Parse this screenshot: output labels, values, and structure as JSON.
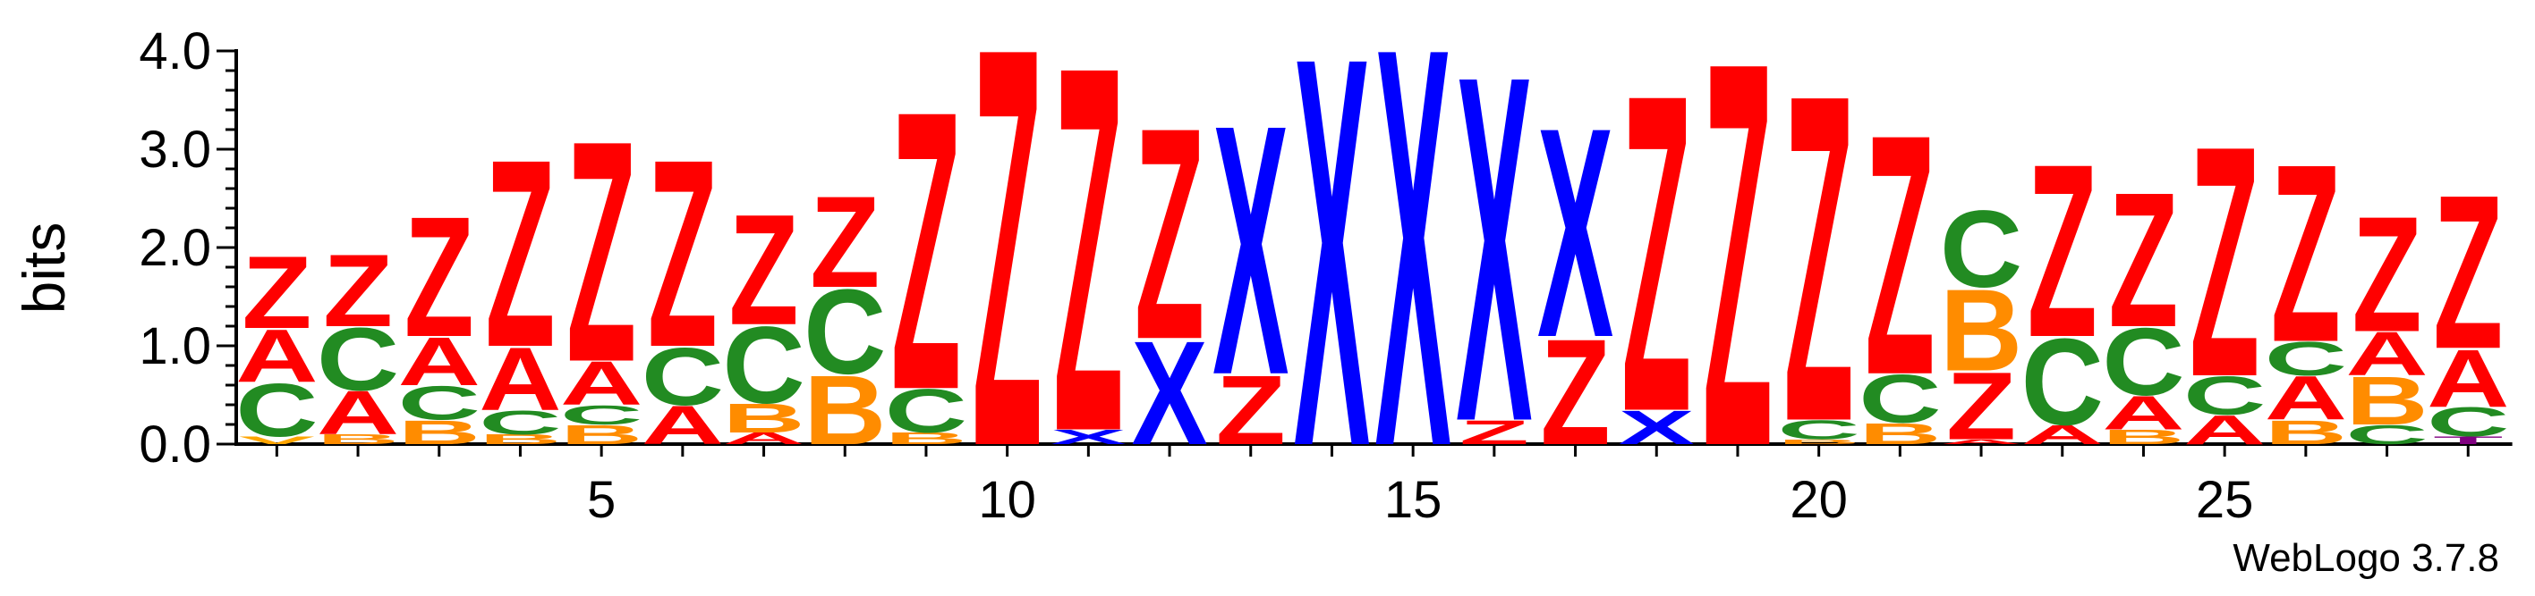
{
  "chart_data": {
    "type": "sequence-logo",
    "ylabel": "bits",
    "ylim": [
      0,
      4.0
    ],
    "y_ticks": [
      "0.0",
      "1.0",
      "2.0",
      "3.0",
      "4.0"
    ],
    "x_tick_labels": [
      "5",
      "10",
      "15",
      "20",
      "25"
    ],
    "x_tick_positions": [
      5,
      10,
      15,
      20,
      25
    ],
    "positions": 28,
    "colors": {
      "Z": "#ff0000",
      "A": "#ff0000",
      "X": "#0000ff",
      "C": "#228b22",
      "B": "#ff8c00",
      "V": "#ffa500",
      "T": "#800080"
    },
    "stacks": [
      [
        [
          "V",
          0.08
        ],
        [
          "C",
          0.55
        ],
        [
          "A",
          0.55
        ],
        [
          "Z",
          0.75
        ]
      ],
      [
        [
          "B",
          0.1
        ],
        [
          "A",
          0.45
        ],
        [
          "C",
          0.65
        ],
        [
          "Z",
          0.75
        ]
      ],
      [
        [
          "B",
          0.25
        ],
        [
          "C",
          0.35
        ],
        [
          "A",
          0.5
        ],
        [
          "Z",
          1.25
        ]
      ],
      [
        [
          "B",
          0.1
        ],
        [
          "C",
          0.25
        ],
        [
          "A",
          0.65
        ],
        [
          "Z",
          1.95
        ]
      ],
      [
        [
          "B",
          0.2
        ],
        [
          "C",
          0.2
        ],
        [
          "A",
          0.45
        ],
        [
          "Z",
          2.3
        ]
      ],
      [
        [
          "A",
          0.4
        ],
        [
          "C",
          0.6
        ],
        [
          "Z",
          1.95
        ]
      ],
      [
        [
          "A",
          0.12
        ],
        [
          "B",
          0.3
        ],
        [
          "C",
          0.8
        ],
        [
          "Z",
          1.15
        ]
      ],
      [
        [
          "B",
          0.72
        ],
        [
          "C",
          0.88
        ],
        [
          "Z",
          0.95
        ]
      ],
      [
        [
          "B",
          0.12
        ],
        [
          "C",
          0.45
        ],
        [
          "Z",
          2.9
        ]
      ],
      [
        [
          "Z",
          4.15
        ]
      ],
      [
        [
          "X",
          0.15
        ],
        [
          "Z",
          3.8
        ]
      ],
      [
        [
          "X",
          1.08
        ],
        [
          "Z",
          2.2
        ]
      ],
      [
        [
          "Z",
          0.72
        ],
        [
          "X",
          2.6
        ]
      ],
      [
        [
          "X",
          4.05
        ]
      ],
      [
        [
          "X",
          4.15
        ]
      ],
      [
        [
          "Z",
          0.25
        ],
        [
          "X",
          3.6
        ]
      ],
      [
        [
          "Z",
          1.1
        ],
        [
          "X",
          2.18
        ]
      ],
      [
        [
          "X",
          0.35
        ],
        [
          "Z",
          3.3
        ]
      ],
      [
        [
          "Z",
          4.0
        ]
      ],
      [
        [
          "B",
          0.05
        ],
        [
          "C",
          0.2
        ],
        [
          "Z",
          3.4
        ]
      ],
      [
        [
          "B",
          0.22
        ],
        [
          "C",
          0.5
        ],
        [
          "Z",
          2.5
        ]
      ],
      [
        [
          "A",
          0.05
        ],
        [
          "Z",
          0.7
        ],
        [
          "B",
          0.85
        ],
        [
          "C",
          0.8
        ]
      ],
      [
        [
          "A",
          0.2
        ],
        [
          "C",
          0.9
        ],
        [
          "Z",
          1.8
        ]
      ],
      [
        [
          "B",
          0.15
        ],
        [
          "A",
          0.35
        ],
        [
          "C",
          0.7
        ],
        [
          "Z",
          1.4
        ]
      ],
      [
        [
          "A",
          0.3
        ],
        [
          "C",
          0.4
        ],
        [
          "Z",
          2.4
        ]
      ],
      [
        [
          "B",
          0.25
        ],
        [
          "A",
          0.45
        ],
        [
          "C",
          0.35
        ],
        [
          "Z",
          1.85
        ]
      ],
      [
        [
          "C",
          0.2
        ],
        [
          "B",
          0.5
        ],
        [
          "A",
          0.45
        ],
        [
          "Z",
          1.2
        ]
      ],
      [
        [
          "T",
          0.08
        ],
        [
          "C",
          0.3
        ],
        [
          "A",
          0.6
        ],
        [
          "Z",
          1.6
        ]
      ]
    ]
  },
  "footer": {
    "credit": "WebLogo 3.7.8"
  }
}
